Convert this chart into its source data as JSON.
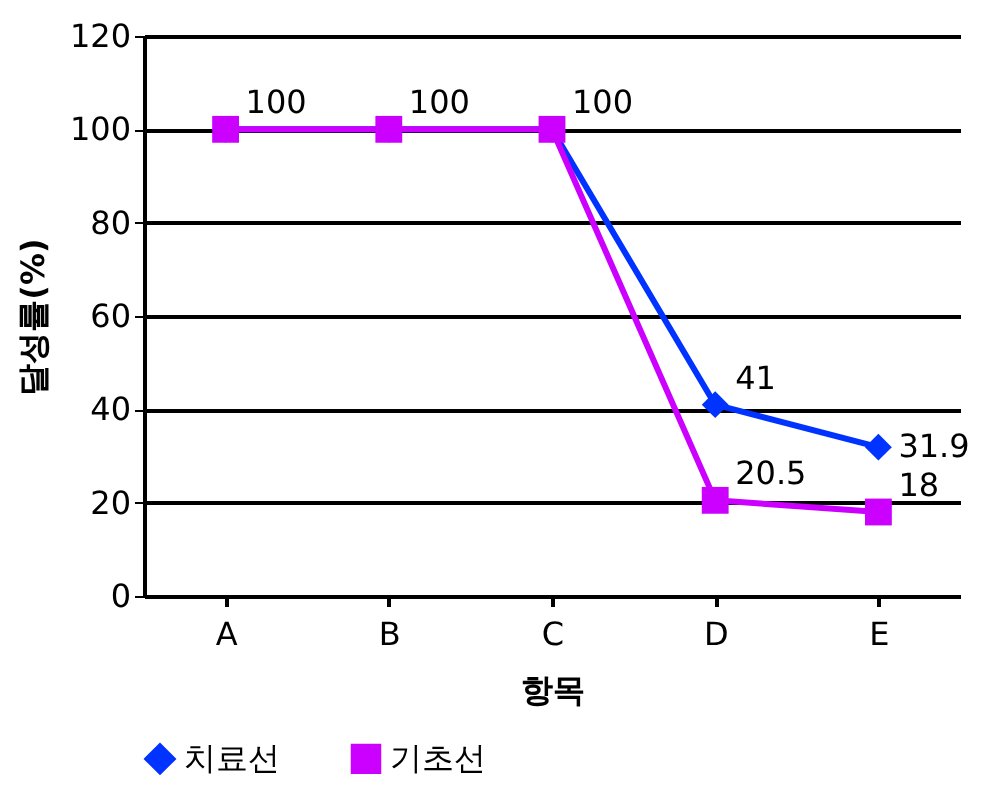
{
  "chart_data": {
    "type": "line",
    "xlabel": "항목",
    "ylabel": "달성률(%)",
    "categories": [
      "A",
      "B",
      "C",
      "D",
      "E"
    ],
    "series": [
      {
        "name": "치료선",
        "color": "#0033ff",
        "marker": "diamond",
        "values": [
          100,
          100,
          100,
          41,
          31.9
        ],
        "value_labels": [
          null,
          null,
          null,
          "41",
          "31.9"
        ]
      },
      {
        "name": "기초선",
        "color": "#cc00ff",
        "marker": "square",
        "values": [
          100,
          100,
          100,
          20.5,
          18
        ],
        "value_labels": [
          "100",
          "100",
          "100",
          "20.5",
          "18"
        ]
      }
    ],
    "ylim": [
      0,
      120
    ],
    "yticks": [
      0,
      20,
      40,
      60,
      80,
      100,
      120
    ],
    "grid": "y",
    "legend": "bottom",
    "line_style": "solid"
  }
}
